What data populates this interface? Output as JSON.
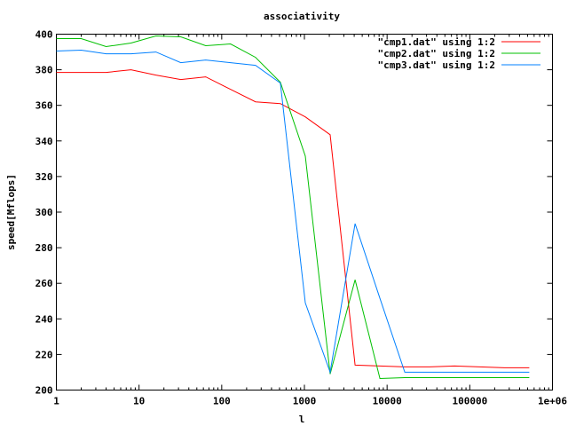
{
  "chart_data": {
    "type": "line",
    "title": "associativity",
    "xlabel": "l",
    "ylabel": "speed[Mflops]",
    "xscale": "log",
    "xlim": [
      1,
      1000000
    ],
    "ylim": [
      200,
      400
    ],
    "xticks": [
      1,
      10,
      100,
      1000,
      10000,
      100000,
      1000000
    ],
    "xtick_labels": [
      "1",
      "10",
      "100",
      "1000",
      "10000",
      "100000",
      "1e+06"
    ],
    "yticks": [
      200,
      220,
      240,
      260,
      280,
      300,
      320,
      340,
      360,
      380,
      400
    ],
    "ytick_labels": [
      "200",
      "220",
      "240",
      "260",
      "280",
      "300",
      "320",
      "340",
      "360",
      "380",
      "400"
    ],
    "grid": false,
    "legend_position": "top-right",
    "series": [
      {
        "name": "\"cmp1.dat\" using 1:2",
        "color": "#ff0000",
        "x": [
          1,
          2,
          4,
          8,
          16,
          32,
          64,
          128,
          256,
          512,
          1024,
          2048,
          4096,
          8192,
          16384,
          32768,
          65536,
          131072,
          262144,
          524288
        ],
        "y": [
          378.5,
          378.5,
          378.5,
          380,
          377,
          374.5,
          376,
          369,
          362,
          361,
          353.5,
          343.5,
          214,
          213.5,
          213,
          213,
          213.5,
          213,
          212.5,
          212.5
        ]
      },
      {
        "name": "\"cmp2.dat\" using 1:2",
        "color": "#00c000",
        "x": [
          1,
          2,
          4,
          8,
          16,
          32,
          64,
          128,
          256,
          512,
          1024,
          2048,
          4096,
          8192,
          16384,
          32768,
          65536,
          131072,
          262144,
          524288
        ],
        "y": [
          397.5,
          397.5,
          393,
          395,
          399,
          398.5,
          393.5,
          394.5,
          387,
          373,
          331.5,
          209,
          262,
          206.5,
          207,
          207,
          207,
          207,
          207,
          207
        ]
      },
      {
        "name": "\"cmp3.dat\" using 1:2",
        "color": "#0080ff",
        "x": [
          1,
          2,
          4,
          8,
          16,
          32,
          64,
          128,
          256,
          512,
          1024,
          2048,
          4096,
          8192,
          16384,
          32768,
          65536,
          131072,
          262144,
          524288
        ],
        "y": [
          390.5,
          391,
          389,
          389,
          390,
          384,
          385.5,
          384,
          382.5,
          372.5,
          249,
          210,
          293.5,
          251.5,
          210,
          210,
          210,
          210,
          210,
          210
        ]
      }
    ]
  }
}
